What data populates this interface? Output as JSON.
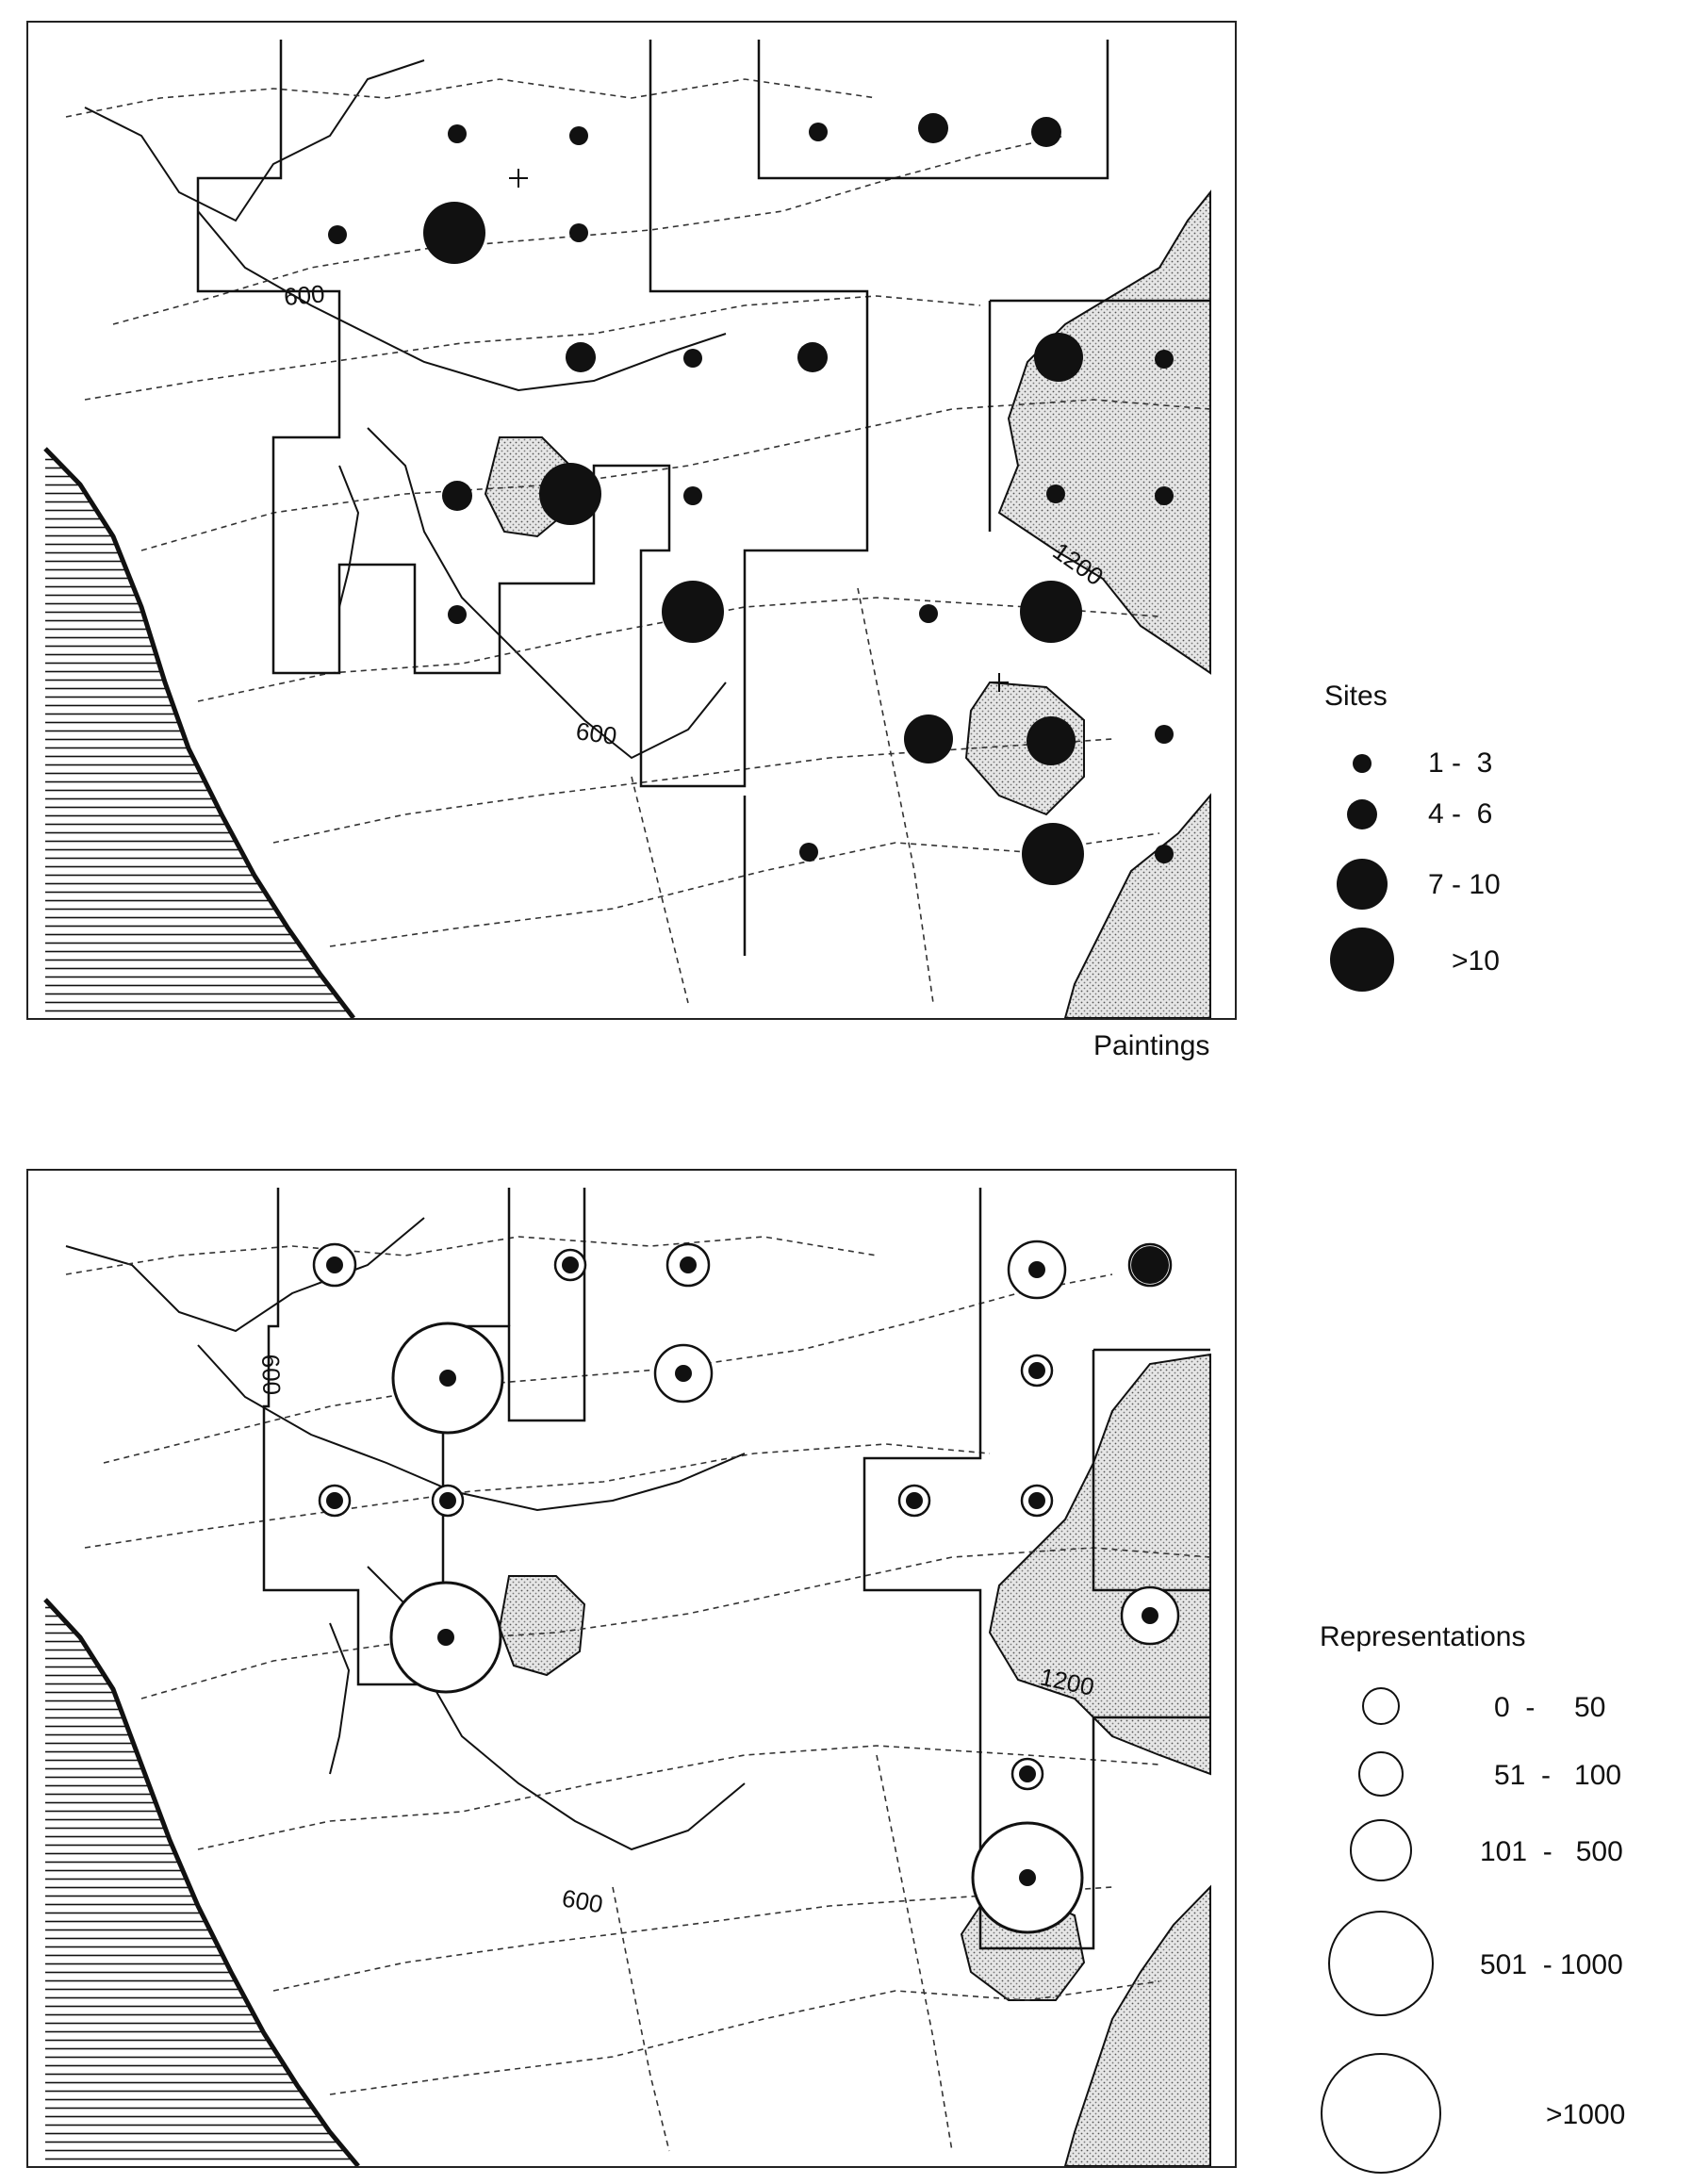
{
  "maps": {
    "paintings": {
      "caption": "Paintings",
      "contour_labels": [
        "600",
        "600",
        "1200"
      ],
      "legend": {
        "title": "Sites",
        "classes": [
          {
            "label": "1 -  3"
          },
          {
            "label": "4 -  6"
          },
          {
            "label": "7 - 10"
          },
          {
            "label": ">10"
          }
        ]
      },
      "symbols": [
        {
          "id": "p1",
          "class": 1
        },
        {
          "id": "p2",
          "class": 1
        },
        {
          "id": "p3",
          "class": 1
        },
        {
          "id": "p4",
          "class": 2
        },
        {
          "id": "p5",
          "class": 2
        },
        {
          "id": "p6",
          "class": 1
        },
        {
          "id": "p7",
          "class": 4
        },
        {
          "id": "p8",
          "class": 1
        },
        {
          "id": "p9",
          "class": 2
        },
        {
          "id": "p10",
          "class": 1
        },
        {
          "id": "p11",
          "class": 2
        },
        {
          "id": "p12",
          "class": 3
        },
        {
          "id": "p13",
          "class": 1
        },
        {
          "id": "p14",
          "class": 2
        },
        {
          "id": "p15",
          "class": 4
        },
        {
          "id": "p16",
          "class": 1
        },
        {
          "id": "p17",
          "class": 1
        },
        {
          "id": "p18",
          "class": 1
        },
        {
          "id": "p19",
          "class": 1
        },
        {
          "id": "p20",
          "class": 4
        },
        {
          "id": "p21",
          "class": 1
        },
        {
          "id": "p22",
          "class": 4
        },
        {
          "id": "p23",
          "class": 3
        },
        {
          "id": "p24",
          "class": 1
        },
        {
          "id": "p25",
          "class": 3
        },
        {
          "id": "p26",
          "class": 1
        },
        {
          "id": "p27",
          "class": 4
        },
        {
          "id": "p28",
          "class": 1
        }
      ]
    },
    "representations": {
      "contour_labels": [
        "600",
        "600",
        "1200"
      ],
      "legend": {
        "title": "Representations",
        "classes": [
          {
            "label": "0  -     50"
          },
          {
            "label": "51  -   100"
          },
          {
            "label": "101  -   500"
          },
          {
            "label": "501  - 1000"
          },
          {
            "label": ">1000"
          }
        ]
      },
      "symbols": [
        {
          "id": "r1",
          "class": 2
        },
        {
          "id": "r2",
          "class": 1
        },
        {
          "id": "r3",
          "class": 2
        },
        {
          "id": "r4",
          "class": 3
        },
        {
          "id": "r5",
          "class": 2
        },
        {
          "id": "r6",
          "class": 5
        },
        {
          "id": "r7",
          "class": 3
        },
        {
          "id": "r8",
          "class": 1
        },
        {
          "id": "r9",
          "class": 1
        },
        {
          "id": "r10",
          "class": 5
        },
        {
          "id": "r11",
          "class": 1
        },
        {
          "id": "r12",
          "class": 1
        },
        {
          "id": "r13",
          "class": 1
        },
        {
          "id": "r14",
          "class": 3
        },
        {
          "id": "r15",
          "class": 1
        },
        {
          "id": "r16",
          "class": 5
        }
      ]
    }
  },
  "colors": {
    "ink": "#111111",
    "stipple": "#d9d9d9",
    "background": "#ffffff"
  }
}
